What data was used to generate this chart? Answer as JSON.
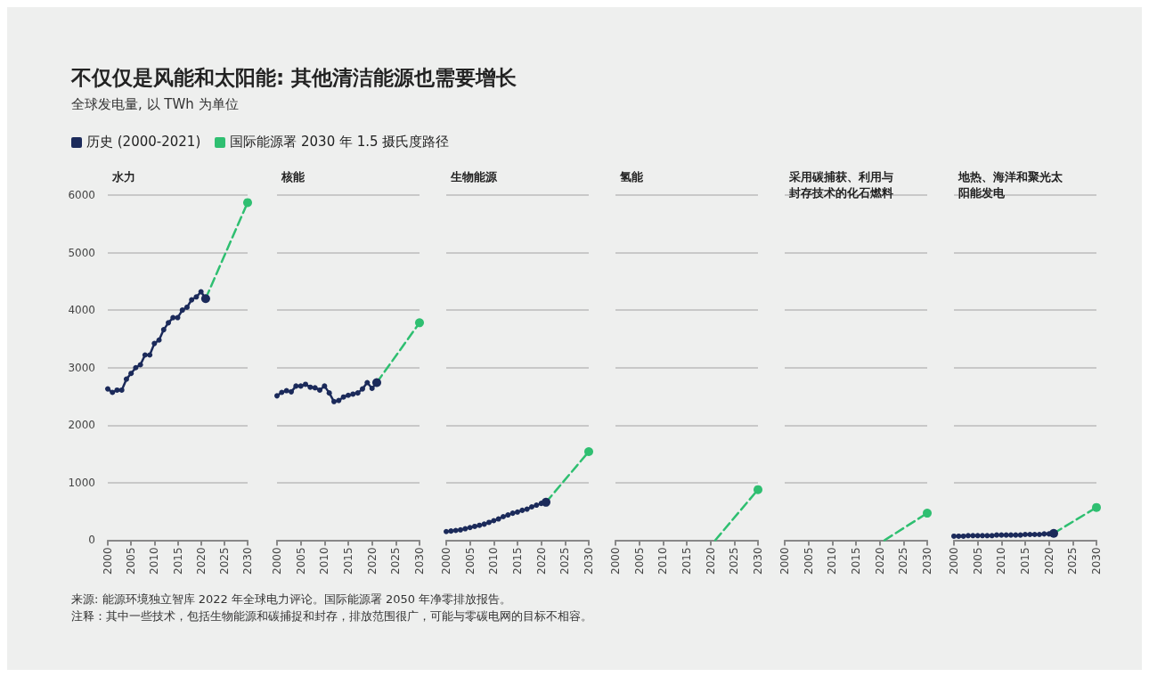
{
  "chart_data": [
    {
      "type": "line",
      "title": "水力",
      "legend": "top",
      "annotations": [
        "不仅仅是风能和太阳能: 其他清洁能源也需要增长",
        "全球发电量, 以 TWh 为单位",
        "来源: 能源环境独立智库 2022 年全球电力评论。国际能源署 2050 年净零排放报告。",
        "注释：其中一些技术，包括生物能源和碳捕捉和封存，排放范围很广，可能与零碳电网的目标不相容。"
      ],
      "xlim": [
        2000,
        2030
      ],
      "xticks": [
        2000,
        2005,
        2010,
        2015,
        2020,
        2025,
        2030
      ],
      "ylim": [
        0,
        6000
      ],
      "yticks": [
        0,
        1000,
        2000,
        3000,
        4000,
        5000,
        6000
      ],
      "grid": "y",
      "series": [
        {
          "name": "历史 (2000-2021)",
          "color": "#1b2a5a",
          "line_style": "solid",
          "marker": "circle",
          "x": [
            2000,
            2001,
            2002,
            2003,
            2004,
            2005,
            2006,
            2007,
            2008,
            2009,
            2010,
            2011,
            2012,
            2013,
            2014,
            2015,
            2016,
            2017,
            2018,
            2019,
            2020,
            2021
          ],
          "values": [
            2630,
            2570,
            2610,
            2610,
            2800,
            2900,
            3000,
            3050,
            3220,
            3220,
            3420,
            3480,
            3660,
            3780,
            3870,
            3870,
            4000,
            4050,
            4180,
            4230,
            4320,
            4200
          ]
        },
        {
          "name": "国际能源署 2030 年 1.5 摄氏度路径",
          "color": "#2fbf71",
          "line_style": "dashed",
          "marker": "circle",
          "x": [
            2021,
            2030
          ],
          "values": [
            4200,
            5870
          ]
        }
      ]
    },
    {
      "type": "line",
      "title": "核能",
      "xlim": [
        2000,
        2030
      ],
      "xticks": [
        2000,
        2005,
        2010,
        2015,
        2020,
        2025,
        2030
      ],
      "ylim": [
        0,
        6000
      ],
      "yticks": [
        0,
        1000,
        2000,
        3000,
        4000,
        5000,
        6000
      ],
      "grid": "y",
      "tick_labels": "x",
      "series": [
        {
          "color": "#1b2a5a",
          "line_style": "solid",
          "marker": "circle",
          "x": [
            2000,
            2001,
            2002,
            2003,
            2004,
            2005,
            2006,
            2007,
            2008,
            2009,
            2010,
            2011,
            2012,
            2013,
            2014,
            2015,
            2016,
            2017,
            2018,
            2019,
            2020,
            2021
          ],
          "values": [
            2510,
            2570,
            2600,
            2580,
            2680,
            2680,
            2710,
            2660,
            2650,
            2610,
            2680,
            2560,
            2410,
            2430,
            2490,
            2520,
            2540,
            2560,
            2630,
            2740,
            2640,
            2740
          ]
        },
        {
          "color": "#2fbf71",
          "line_style": "dashed",
          "marker": "circle",
          "x": [
            2021,
            2030
          ],
          "values": [
            2740,
            3780
          ]
        }
      ]
    },
    {
      "type": "line",
      "title": "生物能源",
      "xlim": [
        2000,
        2030
      ],
      "xticks": [
        2000,
        2005,
        2010,
        2015,
        2020,
        2025,
        2030
      ],
      "ylim": [
        0,
        6000
      ],
      "yticks": [
        0,
        1000,
        2000,
        3000,
        4000,
        5000,
        6000
      ],
      "grid": "y",
      "tick_labels": "x",
      "series": [
        {
          "color": "#1b2a5a",
          "line_style": "solid",
          "marker": "circle",
          "x": [
            2000,
            2001,
            2002,
            2003,
            2004,
            2005,
            2006,
            2007,
            2008,
            2009,
            2010,
            2011,
            2012,
            2013,
            2014,
            2015,
            2016,
            2017,
            2018,
            2019,
            2020,
            2021
          ],
          "values": [
            150,
            160,
            170,
            180,
            200,
            220,
            240,
            260,
            280,
            310,
            340,
            370,
            410,
            440,
            470,
            490,
            520,
            540,
            580,
            610,
            640,
            660
          ]
        },
        {
          "color": "#2fbf71",
          "line_style": "dashed",
          "marker": "circle",
          "x": [
            2021,
            2030
          ],
          "values": [
            660,
            1540
          ]
        }
      ]
    },
    {
      "type": "line",
      "title": "氢能",
      "xlim": [
        2000,
        2030
      ],
      "xticks": [
        2000,
        2005,
        2010,
        2015,
        2020,
        2025,
        2030
      ],
      "ylim": [
        0,
        6000
      ],
      "yticks": [
        0,
        1000,
        2000,
        3000,
        4000,
        5000,
        6000
      ],
      "grid": "y",
      "tick_labels": "x",
      "series": [
        {
          "color": "#2fbf71",
          "line_style": "dashed",
          "marker": "circle",
          "x": [
            2021,
            2030
          ],
          "values": [
            0,
            880
          ]
        }
      ]
    },
    {
      "type": "line",
      "title": "采用碳捕获、利用与封存技术的化石燃料",
      "xlim": [
        2000,
        2030
      ],
      "xticks": [
        2000,
        2005,
        2010,
        2015,
        2020,
        2025,
        2030
      ],
      "ylim": [
        0,
        6000
      ],
      "yticks": [
        0,
        1000,
        2000,
        3000,
        4000,
        5000,
        6000
      ],
      "grid": "y",
      "tick_labels": "x",
      "series": [
        {
          "color": "#2fbf71",
          "line_style": "dashed",
          "marker": "circle",
          "x": [
            2021,
            2030
          ],
          "values": [
            0,
            470
          ]
        }
      ]
    },
    {
      "type": "line",
      "title": "地热、海洋和聚光太阳能发电",
      "xlim": [
        2000,
        2030
      ],
      "xticks": [
        2000,
        2005,
        2010,
        2015,
        2020,
        2025,
        2030
      ],
      "ylim": [
        0,
        6000
      ],
      "yticks": [
        0,
        1000,
        2000,
        3000,
        4000,
        5000,
        6000
      ],
      "grid": "y",
      "tick_labels": "x",
      "series": [
        {
          "color": "#1b2a5a",
          "line_style": "solid",
          "marker": "circle",
          "x": [
            2000,
            2001,
            2002,
            2003,
            2004,
            2005,
            2006,
            2007,
            2008,
            2009,
            2010,
            2011,
            2012,
            2013,
            2014,
            2015,
            2016,
            2017,
            2018,
            2019,
            2020,
            2021
          ],
          "values": [
            70,
            70,
            70,
            80,
            80,
            80,
            80,
            80,
            80,
            90,
            90,
            90,
            90,
            90,
            90,
            100,
            100,
            100,
            100,
            110,
            110,
            120
          ]
        },
        {
          "color": "#2fbf71",
          "line_style": "dashed",
          "marker": "circle",
          "x": [
            2021,
            2030
          ],
          "values": [
            120,
            570
          ]
        }
      ]
    }
  ]
}
